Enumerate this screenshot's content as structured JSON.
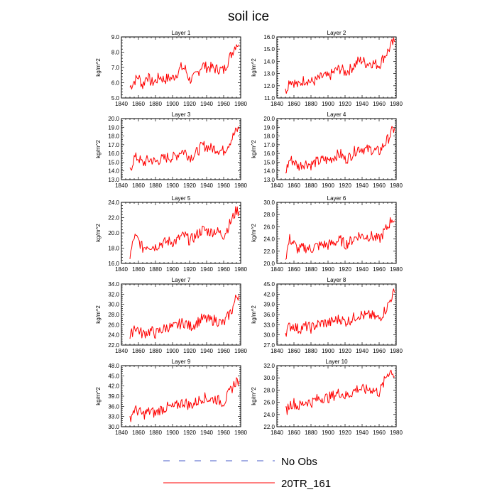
{
  "title": "soil ice",
  "colors": {
    "series_line": "#ff0000",
    "no_obs_dash": "#4a5ec8",
    "legend_line": "#ff0000"
  },
  "legend": [
    {
      "label": "No Obs",
      "style": "dashed"
    },
    {
      "label": "20TR_161",
      "style": "solid"
    }
  ],
  "chart_data": [
    {
      "type": "line",
      "title": "Layer 1",
      "ylabel": "kg/m^2",
      "xlim": [
        1840,
        1980
      ],
      "ylim": [
        5.0,
        9.0
      ],
      "xticks": [
        "1840",
        "1860",
        "1880",
        "1900",
        "1920",
        "1940",
        "1960",
        "1980"
      ],
      "yticks": [
        "5.0",
        "6.0",
        "7.0",
        "8.0",
        "9.0"
      ],
      "series": [
        {
          "name": "20TR_161",
          "x": [
            1850,
            1855,
            1860,
            1865,
            1870,
            1875,
            1880,
            1885,
            1890,
            1895,
            1900,
            1905,
            1910,
            1915,
            1920,
            1925,
            1930,
            1935,
            1940,
            1945,
            1950,
            1955,
            1960,
            1965,
            1970,
            1975,
            1978
          ],
          "y": [
            5.7,
            6.1,
            6.4,
            5.8,
            6.5,
            6.0,
            6.1,
            6.4,
            6.2,
            6.3,
            6.3,
            6.6,
            7.0,
            6.9,
            6.2,
            6.3,
            6.7,
            7.2,
            7.0,
            7.0,
            6.9,
            6.9,
            6.8,
            7.4,
            8.0,
            8.6,
            8.5
          ]
        }
      ]
    },
    {
      "type": "line",
      "title": "Layer 2",
      "ylabel": "kg/m^2",
      "xlim": [
        1840,
        1980
      ],
      "ylim": [
        11.0,
        16.0
      ],
      "xticks": [
        "1840",
        "1860",
        "1880",
        "1900",
        "1920",
        "1940",
        "1960",
        "1980"
      ],
      "yticks": [
        "11.0",
        "12.0",
        "13.0",
        "14.0",
        "15.0",
        "16.0"
      ],
      "series": [
        {
          "name": "20TR_161",
          "x": [
            1850,
            1855,
            1860,
            1865,
            1870,
            1875,
            1880,
            1885,
            1890,
            1895,
            1900,
            1905,
            1910,
            1915,
            1920,
            1925,
            1930,
            1935,
            1940,
            1945,
            1950,
            1955,
            1960,
            1965,
            1970,
            1975,
            1978
          ],
          "y": [
            11.5,
            12.5,
            12.3,
            12.0,
            12.4,
            12.5,
            12.3,
            12.4,
            12.6,
            12.8,
            12.7,
            13.0,
            13.3,
            13.4,
            13.1,
            13.3,
            13.6,
            14.0,
            14.1,
            13.8,
            13.9,
            13.8,
            13.7,
            14.3,
            14.8,
            15.4,
            15.6
          ]
        }
      ]
    },
    {
      "type": "line",
      "title": "Layer 3",
      "ylabel": "kg/m^2",
      "xlim": [
        1840,
        1980
      ],
      "ylim": [
        13.0,
        20.0
      ],
      "xticks": [
        "1840",
        "1860",
        "1880",
        "1900",
        "1920",
        "1940",
        "1960",
        "1980"
      ],
      "yticks": [
        "13.0",
        "14.0",
        "15.0",
        "16.0",
        "17.0",
        "18.0",
        "19.0",
        "20.0"
      ],
      "series": [
        {
          "name": "20TR_161",
          "x": [
            1850,
            1855,
            1860,
            1865,
            1870,
            1875,
            1880,
            1885,
            1890,
            1895,
            1900,
            1905,
            1910,
            1915,
            1920,
            1925,
            1930,
            1935,
            1940,
            1945,
            1950,
            1955,
            1960,
            1965,
            1970,
            1975,
            1978
          ],
          "y": [
            14.0,
            15.5,
            15.5,
            14.8,
            15.2,
            15.3,
            15.0,
            15.3,
            15.4,
            15.6,
            15.5,
            15.8,
            16.3,
            16.2,
            15.6,
            15.8,
            16.3,
            16.9,
            16.8,
            16.6,
            16.6,
            16.4,
            16.3,
            17.0,
            17.8,
            18.6,
            18.8
          ]
        }
      ]
    },
    {
      "type": "line",
      "title": "Layer 4",
      "ylabel": "kg/m^2",
      "xlim": [
        1840,
        1980
      ],
      "ylim": [
        13.0,
        20.0
      ],
      "xticks": [
        "1840",
        "1860",
        "1880",
        "1900",
        "1920",
        "1940",
        "1960",
        "1980"
      ],
      "yticks": [
        "13.0",
        "14.0",
        "15.0",
        "16.0",
        "17.0",
        "18.0",
        "19.0",
        "20.0"
      ],
      "series": [
        {
          "name": "20TR_161",
          "x": [
            1850,
            1855,
            1860,
            1865,
            1870,
            1875,
            1880,
            1885,
            1890,
            1895,
            1900,
            1905,
            1910,
            1915,
            1920,
            1925,
            1930,
            1935,
            1940,
            1945,
            1950,
            1955,
            1960,
            1965,
            1970,
            1975,
            1978
          ],
          "y": [
            13.8,
            15.3,
            15.1,
            14.5,
            14.8,
            14.9,
            14.7,
            15.0,
            15.1,
            15.3,
            15.2,
            15.5,
            15.8,
            15.9,
            15.3,
            15.6,
            16.1,
            16.6,
            16.6,
            16.4,
            16.5,
            16.3,
            16.2,
            16.9,
            17.6,
            18.5,
            18.9
          ]
        }
      ]
    },
    {
      "type": "line",
      "title": "Layer 5",
      "ylabel": "kg/m^2",
      "xlim": [
        1840,
        1980
      ],
      "ylim": [
        16.0,
        24.0
      ],
      "xticks": [
        "1840",
        "1860",
        "1880",
        "1900",
        "1920",
        "1940",
        "1960",
        "1980"
      ],
      "yticks": [
        "16.0",
        "18.0",
        "20.0",
        "22.0",
        "24.0"
      ],
      "series": [
        {
          "name": "20TR_161",
          "x": [
            1850,
            1855,
            1860,
            1865,
            1870,
            1875,
            1880,
            1885,
            1890,
            1895,
            1900,
            1905,
            1910,
            1915,
            1920,
            1925,
            1930,
            1935,
            1940,
            1945,
            1950,
            1955,
            1960,
            1965,
            1970,
            1975,
            1978
          ],
          "y": [
            16.8,
            19.5,
            19.0,
            18.0,
            18.4,
            18.3,
            18.2,
            18.6,
            18.7,
            18.9,
            18.8,
            19.0,
            19.5,
            19.6,
            19.0,
            19.4,
            19.9,
            20.4,
            20.3,
            20.1,
            20.3,
            20.0,
            19.7,
            20.7,
            21.8,
            23.0,
            22.8
          ]
        }
      ]
    },
    {
      "type": "line",
      "title": "Layer 6",
      "ylabel": "kg/m^2",
      "xlim": [
        1840,
        1980
      ],
      "ylim": [
        20.0,
        30.0
      ],
      "xticks": [
        "1840",
        "1860",
        "1880",
        "1900",
        "1920",
        "1940",
        "1960",
        "1980"
      ],
      "yticks": [
        "20.0",
        "22.0",
        "24.0",
        "26.0",
        "28.0",
        "30.0"
      ],
      "series": [
        {
          "name": "20TR_161",
          "x": [
            1850,
            1855,
            1860,
            1865,
            1870,
            1875,
            1880,
            1885,
            1890,
            1895,
            1900,
            1905,
            1910,
            1915,
            1920,
            1925,
            1930,
            1935,
            1940,
            1945,
            1950,
            1955,
            1960,
            1965,
            1970,
            1975,
            1978
          ],
          "y": [
            20.8,
            24.0,
            23.2,
            22.2,
            22.5,
            22.6,
            22.3,
            22.8,
            22.9,
            23.1,
            23.0,
            23.3,
            23.6,
            23.8,
            23.1,
            23.5,
            24.0,
            24.6,
            24.5,
            24.4,
            24.5,
            24.2,
            23.9,
            25.0,
            26.0,
            27.4,
            27.0
          ]
        }
      ]
    },
    {
      "type": "line",
      "title": "Layer 7",
      "ylabel": "kg/m^2",
      "xlim": [
        1840,
        1980
      ],
      "ylim": [
        22.0,
        34.0
      ],
      "xticks": [
        "1840",
        "1860",
        "1880",
        "1900",
        "1920",
        "1940",
        "1960",
        "1980"
      ],
      "yticks": [
        "22.0",
        "24.0",
        "26.0",
        "28.0",
        "30.0",
        "32.0",
        "34.0"
      ],
      "series": [
        {
          "name": "20TR_161",
          "x": [
            1850,
            1855,
            1860,
            1865,
            1870,
            1875,
            1880,
            1885,
            1890,
            1895,
            1900,
            1905,
            1910,
            1915,
            1920,
            1925,
            1930,
            1935,
            1940,
            1945,
            1950,
            1955,
            1960,
            1965,
            1970,
            1975,
            1978
          ],
          "y": [
            23.2,
            25.7,
            25.0,
            24.1,
            24.6,
            24.8,
            24.2,
            24.8,
            25.2,
            25.6,
            25.4,
            25.8,
            26.3,
            26.4,
            25.6,
            26.0,
            26.6,
            27.2,
            27.0,
            26.8,
            27.0,
            26.5,
            26.2,
            27.6,
            29.0,
            31.5,
            31.8
          ]
        }
      ]
    },
    {
      "type": "line",
      "title": "Layer 8",
      "ylabel": "kg/m^2",
      "xlim": [
        1840,
        1980
      ],
      "ylim": [
        27.0,
        45.0
      ],
      "xticks": [
        "1840",
        "1860",
        "1880",
        "1900",
        "1920",
        "1940",
        "1960",
        "1980"
      ],
      "yticks": [
        "27.0",
        "30.0",
        "33.0",
        "36.0",
        "39.0",
        "42.0",
        "45.0"
      ],
      "series": [
        {
          "name": "20TR_161",
          "x": [
            1850,
            1855,
            1860,
            1865,
            1870,
            1875,
            1880,
            1885,
            1890,
            1895,
            1900,
            1905,
            1910,
            1915,
            1920,
            1925,
            1930,
            1935,
            1940,
            1945,
            1950,
            1955,
            1960,
            1965,
            1970,
            1975,
            1978
          ],
          "y": [
            30.8,
            32.5,
            32.8,
            31.6,
            32.2,
            32.5,
            32.0,
            32.8,
            33.2,
            33.6,
            33.4,
            33.9,
            34.5,
            34.7,
            33.8,
            34.3,
            35.0,
            36.0,
            35.8,
            35.5,
            35.8,
            35.2,
            34.8,
            36.6,
            38.5,
            41.5,
            42.5
          ]
        }
      ]
    },
    {
      "type": "line",
      "title": "Layer 9",
      "ylabel": "kg/m^2",
      "xlim": [
        1840,
        1980
      ],
      "ylim": [
        30.0,
        48.0
      ],
      "xticks": [
        "1840",
        "1860",
        "1880",
        "1900",
        "1920",
        "1940",
        "1960",
        "1980"
      ],
      "yticks": [
        "30.0",
        "33.0",
        "36.0",
        "39.0",
        "42.0",
        "45.0",
        "48.0"
      ],
      "series": [
        {
          "name": "20TR_161",
          "x": [
            1850,
            1855,
            1860,
            1865,
            1870,
            1875,
            1880,
            1885,
            1890,
            1895,
            1900,
            1905,
            1910,
            1915,
            1920,
            1925,
            1930,
            1935,
            1940,
            1945,
            1950,
            1955,
            1960,
            1965,
            1970,
            1975,
            1978
          ],
          "y": [
            32.6,
            35.0,
            34.6,
            33.5,
            34.2,
            34.6,
            33.8,
            35.0,
            35.4,
            35.8,
            35.6,
            36.2,
            37.0,
            37.2,
            36.2,
            36.8,
            37.6,
            38.6,
            38.4,
            38.0,
            38.3,
            37.6,
            37.2,
            39.2,
            41.5,
            43.6,
            43.5
          ]
        }
      ]
    },
    {
      "type": "line",
      "title": "Layer 10",
      "ylabel": "kg/m^2",
      "xlim": [
        1840,
        1980
      ],
      "ylim": [
        22.0,
        32.0
      ],
      "xticks": [
        "1840",
        "1860",
        "1880",
        "1900",
        "1920",
        "1940",
        "1960",
        "1980"
      ],
      "yticks": [
        "22.0",
        "24.0",
        "26.0",
        "28.0",
        "30.0",
        "32.0"
      ],
      "series": [
        {
          "name": "20TR_161",
          "x": [
            1850,
            1855,
            1860,
            1865,
            1870,
            1875,
            1880,
            1885,
            1890,
            1895,
            1900,
            1905,
            1910,
            1915,
            1920,
            1925,
            1930,
            1935,
            1940,
            1945,
            1950,
            1955,
            1960,
            1965,
            1970,
            1975,
            1978
          ],
          "y": [
            24.4,
            25.6,
            25.9,
            25.3,
            25.7,
            26.2,
            25.9,
            26.4,
            26.6,
            26.8,
            26.7,
            27.0,
            27.4,
            27.6,
            27.0,
            27.3,
            27.8,
            28.3,
            28.1,
            28.0,
            28.2,
            27.9,
            27.6,
            29.0,
            30.8,
            31.2,
            30.2
          ]
        }
      ]
    }
  ]
}
